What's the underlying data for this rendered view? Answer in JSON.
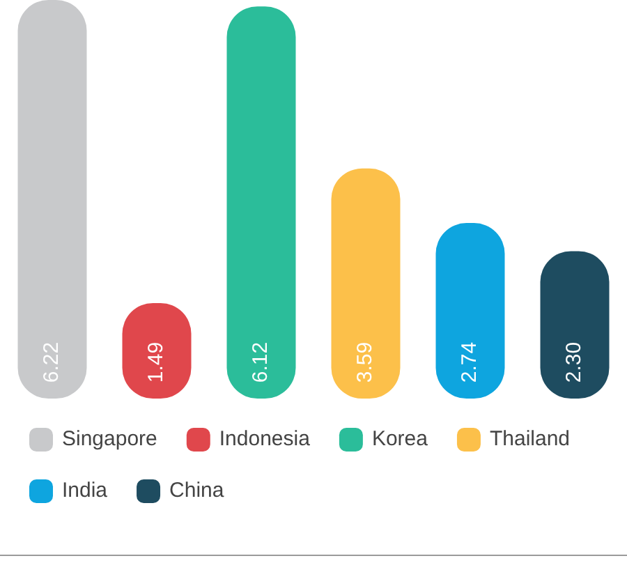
{
  "chart_data": {
    "type": "bar",
    "categories": [
      null,
      null,
      null,
      null,
      null,
      null
    ],
    "series": [
      {
        "name": "Singapore",
        "color": "#c8c9cb",
        "values": [
          6.22,
          null,
          null,
          null,
          null,
          null
        ],
        "value_labels": [
          "6.22",
          null,
          null,
          null,
          null,
          null
        ]
      },
      {
        "name": "Indonesia",
        "color": "#e0474c",
        "values": [
          null,
          1.49,
          null,
          null,
          null,
          null
        ],
        "value_labels": [
          null,
          "1.49",
          null,
          null,
          null,
          null
        ]
      },
      {
        "name": "Korea",
        "color": "#2bbd9a",
        "values": [
          null,
          null,
          6.12,
          null,
          null,
          null
        ],
        "value_labels": [
          null,
          null,
          "6.12",
          null,
          null,
          null
        ]
      },
      {
        "name": "Thailand",
        "color": "#fcc04a",
        "values": [
          null,
          null,
          null,
          3.59,
          null,
          null
        ],
        "value_labels": [
          null,
          null,
          null,
          "3.59",
          null,
          null
        ]
      },
      {
        "name": "India",
        "color": "#0ea5df",
        "values": [
          null,
          null,
          null,
          null,
          2.74,
          null
        ],
        "value_labels": [
          null,
          null,
          null,
          null,
          "2.74",
          null
        ]
      },
      {
        "name": "China",
        "color": "#1e4c60",
        "values": [
          null,
          null,
          null,
          null,
          null,
          2.3
        ],
        "value_labels": [
          null,
          null,
          null,
          null,
          null,
          "2.30"
        ]
      }
    ],
    "stacked": true,
    "legend": "bottom"
  }
}
